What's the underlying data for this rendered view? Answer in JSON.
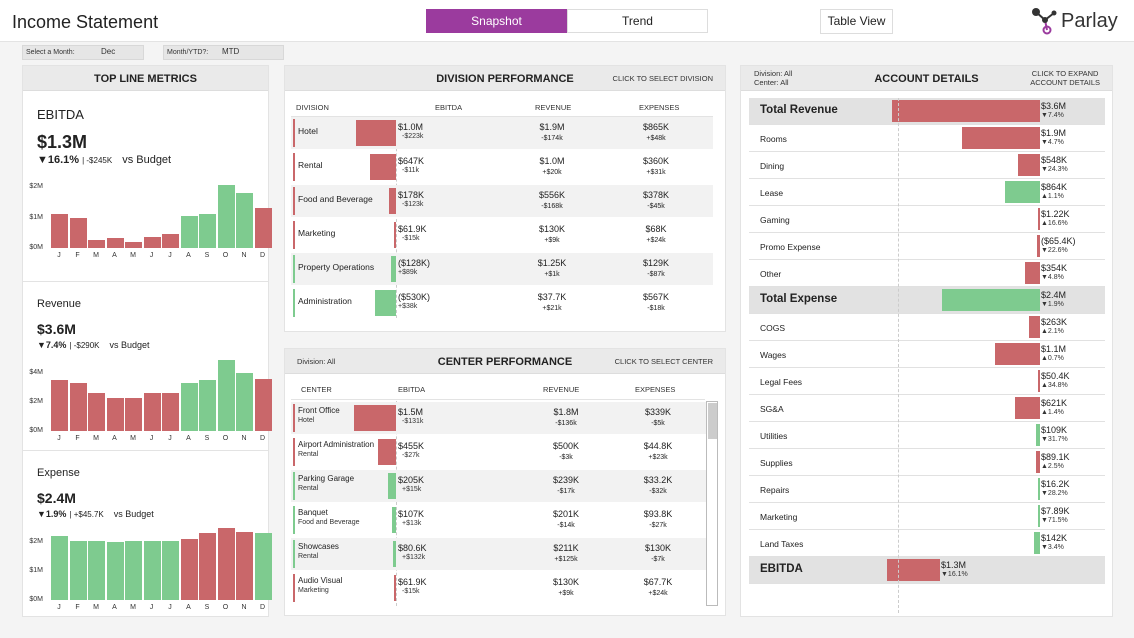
{
  "header": {
    "title": "Income Statement",
    "tabs": [
      {
        "label": "Snapshot",
        "active": true
      },
      {
        "label": "Trend",
        "active": false
      }
    ],
    "table_view": "Table View",
    "logo": "Parlay"
  },
  "filters": {
    "month_label": "Select a Month:",
    "month_value": "Dec",
    "mtd_label": "Month/YTD?:",
    "mtd_value": "MTD"
  },
  "top_line": {
    "title": "TOP LINE METRICS",
    "months": [
      "J",
      "F",
      "M",
      "A",
      "M",
      "J",
      "J",
      "A",
      "S",
      "O",
      "N",
      "D"
    ],
    "kpis": [
      {
        "name": "EBITDA",
        "value": "$1.3M",
        "pct": "▼16.1%",
        "delta": "| -$245K",
        "vs": "vs Budget",
        "yticks": [
          "$2M",
          "$1M",
          "$0M"
        ],
        "bars": [
          1.1,
          0.98,
          0.27,
          0.32,
          0.19,
          0.37,
          0.45,
          1.05,
          1.1,
          2.05,
          1.8,
          1.3
        ],
        "colors": [
          "red",
          "red",
          "red",
          "red",
          "red",
          "red",
          "red",
          "green",
          "green",
          "green",
          "green",
          "red"
        ]
      },
      {
        "name": "Revenue",
        "value": "$3.6M",
        "pct": "▼7.4%",
        "delta": "| -$290K",
        "vs": "vs Budget",
        "yticks": [
          "$4M",
          "$2M",
          "$0M"
        ],
        "bars": [
          3.5,
          3.3,
          2.6,
          2.3,
          2.3,
          2.6,
          2.6,
          3.3,
          3.5,
          4.9,
          4.0,
          3.6
        ],
        "colors": [
          "red",
          "red",
          "red",
          "red",
          "red",
          "red",
          "red",
          "green",
          "green",
          "green",
          "green",
          "red"
        ]
      },
      {
        "name": "Expense",
        "value": "$2.4M",
        "pct": "▼1.9%",
        "delta": "| +$45.7K",
        "vs": "vs Budget",
        "yticks": [
          "$2M",
          "$1M",
          "$0M"
        ],
        "bars": [
          2.2,
          2.05,
          2.05,
          2.0,
          2.05,
          2.05,
          2.05,
          2.1,
          2.3,
          2.5,
          2.35,
          2.3
        ],
        "colors": [
          "green",
          "green",
          "green",
          "green",
          "green",
          "green",
          "green",
          "red",
          "red",
          "red",
          "red",
          "green"
        ]
      }
    ]
  },
  "division": {
    "title": "DIVISION PERFORMANCE",
    "action": "CLICK TO SELECT DIVISION",
    "cols": [
      "DIVISION",
      "EBITDA",
      "REVENUE",
      "EXPENSES"
    ],
    "rows": [
      {
        "name": "Hotel",
        "ebitda": "$1.0M",
        "ebitda_d": "-$223k",
        "ebitda_val": 1.0,
        "color": "red",
        "rev": "$1.9M",
        "rev_d": "-$174k",
        "exp": "$865K",
        "exp_d": "+$48k"
      },
      {
        "name": "Rental",
        "ebitda": "$647K",
        "ebitda_d": "-$11k",
        "ebitda_val": 0.647,
        "color": "red",
        "rev": "$1.0M",
        "rev_d": "+$20k",
        "exp": "$360K",
        "exp_d": "+$31k"
      },
      {
        "name": "Food and Beverage",
        "ebitda": "$178K",
        "ebitda_d": "-$123k",
        "ebitda_val": 0.178,
        "color": "red",
        "rev": "$556K",
        "rev_d": "-$168k",
        "exp": "$378K",
        "exp_d": "-$45k"
      },
      {
        "name": "Marketing",
        "ebitda": "$61.9K",
        "ebitda_d": "-$15k",
        "ebitda_val": 0.0619,
        "color": "red",
        "rev": "$130K",
        "rev_d": "+$9k",
        "exp": "$68K",
        "exp_d": "+$24k"
      },
      {
        "name": "Property Operations",
        "ebitda": "($128K)",
        "ebitda_d": "+$89k",
        "ebitda_val": -0.128,
        "color": "green",
        "rev": "$1.25K",
        "rev_d": "+$1k",
        "exp": "$129K",
        "exp_d": "-$87k"
      },
      {
        "name": "Administration",
        "ebitda": "($530K)",
        "ebitda_d": "+$38k",
        "ebitda_val": -0.53,
        "color": "green",
        "rev": "$37.7K",
        "rev_d": "+$21k",
        "exp": "$567K",
        "exp_d": "-$18k"
      }
    ]
  },
  "center": {
    "title": "CENTER PERFORMANCE",
    "filter": "Division: All",
    "action": "CLICK TO SELECT CENTER",
    "cols": [
      "CENTER",
      "EBITDA",
      "REVENUE",
      "EXPENSES"
    ],
    "rows": [
      {
        "name": "Front Office",
        "div": "Hotel",
        "ebitda": "$1.5M",
        "ebitda_d": "-$131k",
        "ebitda_val": 1.5,
        "color": "red",
        "rev": "$1.8M",
        "rev_d": "-$136k",
        "exp": "$339K",
        "exp_d": "-$5k"
      },
      {
        "name": "Airport Administration",
        "div": "Rental",
        "ebitda": "$455K",
        "ebitda_d": "-$27k",
        "ebitda_val": 0.455,
        "color": "red",
        "rev": "$500K",
        "rev_d": "-$3k",
        "exp": "$44.8K",
        "exp_d": "+$23k"
      },
      {
        "name": "Parking Garage",
        "div": "Rental",
        "ebitda": "$205K",
        "ebitda_d": "+$15k",
        "ebitda_val": 0.205,
        "color": "green",
        "rev": "$239K",
        "rev_d": "-$17k",
        "exp": "$33.2K",
        "exp_d": "-$32k"
      },
      {
        "name": "Banquet",
        "div": "Food and Beverage",
        "ebitda": "$107K",
        "ebitda_d": "+$13k",
        "ebitda_val": 0.107,
        "color": "green",
        "rev": "$201K",
        "rev_d": "-$14k",
        "exp": "$93.8K",
        "exp_d": "-$27k"
      },
      {
        "name": "Showcases",
        "div": "Rental",
        "ebitda": "$80.6K",
        "ebitda_d": "+$132k",
        "ebitda_val": 0.0806,
        "color": "green",
        "rev": "$211K",
        "rev_d": "+$125k",
        "exp": "$130K",
        "exp_d": "-$7k"
      },
      {
        "name": "Audio Visual",
        "div": "Marketing",
        "ebitda": "$61.9K",
        "ebitda_d": "-$15k",
        "ebitda_val": 0.0619,
        "color": "red",
        "rev": "$130K",
        "rev_d": "+$9k",
        "exp": "$67.7K",
        "exp_d": "+$24k"
      }
    ]
  },
  "account": {
    "title": "ACCOUNT DETAILS",
    "filter_div": "Division: All",
    "filter_center": "Center: All",
    "action_1": "CLICK TO EXPAND",
    "action_2": "ACCOUNT DETAILS",
    "rows": [
      {
        "name": "Total Revenue",
        "header": true,
        "value": "$3.6M",
        "delta": "▼7.4%",
        "mag": 3.6,
        "color": "red",
        "dir": "neg"
      },
      {
        "name": "Rooms",
        "value": "$1.9M",
        "delta": "▼4.7%",
        "mag": 1.9,
        "color": "red",
        "dir": "neg"
      },
      {
        "name": "Dining",
        "value": "$548K",
        "delta": "▼24.3%",
        "mag": 0.548,
        "color": "red",
        "dir": "neg"
      },
      {
        "name": "Lease",
        "value": "$864K",
        "delta": "▲1.1%",
        "mag": 0.864,
        "color": "green",
        "dir": "neg"
      },
      {
        "name": "Gaming",
        "value": "$1.22K",
        "delta": "▲16.6%",
        "mag": 0.01,
        "color": "red",
        "dir": "neg"
      },
      {
        "name": "Promo Expense",
        "value": "($65.4K)",
        "delta": "▼22.6%",
        "mag": 0.065,
        "color": "red",
        "dir": "neg"
      },
      {
        "name": "Other",
        "value": "$354K",
        "delta": "▼4.8%",
        "mag": 0.354,
        "color": "red",
        "dir": "neg"
      },
      {
        "name": "Total Expense",
        "header": true,
        "value": "$2.4M",
        "delta": "▼1.9%",
        "mag": 2.4,
        "color": "green",
        "dir": "neg"
      },
      {
        "name": "COGS",
        "value": "$263K",
        "delta": "▲2.1%",
        "mag": 0.263,
        "color": "red",
        "dir": "neg"
      },
      {
        "name": "Wages",
        "value": "$1.1M",
        "delta": "▲0.7%",
        "mag": 1.1,
        "color": "red",
        "dir": "neg"
      },
      {
        "name": "Legal Fees",
        "value": "$50.4K",
        "delta": "▲34.8%",
        "mag": 0.0504,
        "color": "red",
        "dir": "neg"
      },
      {
        "name": "SG&A",
        "value": "$621K",
        "delta": "▲1.4%",
        "mag": 0.621,
        "color": "red",
        "dir": "neg"
      },
      {
        "name": "Utilities",
        "value": "$109K",
        "delta": "▼31.7%",
        "mag": 0.109,
        "color": "green",
        "dir": "neg"
      },
      {
        "name": "Supplies",
        "value": "$89.1K",
        "delta": "▲2.5%",
        "mag": 0.089,
        "color": "red",
        "dir": "neg"
      },
      {
        "name": "Repairs",
        "value": "$16.2K",
        "delta": "▼28.2%",
        "mag": 0.0162,
        "color": "green",
        "dir": "neg"
      },
      {
        "name": "Marketing",
        "value": "$7.89K",
        "delta": "▼71.5%",
        "mag": 0.0079,
        "color": "green",
        "dir": "neg"
      },
      {
        "name": "Land Taxes",
        "value": "$142K",
        "delta": "▼3.4%",
        "mag": 0.142,
        "color": "green",
        "dir": "neg"
      },
      {
        "name": "EBITDA",
        "header": true,
        "value": "$1.3M",
        "delta": "▼16.1%",
        "mag": 1.3,
        "color": "red",
        "dir": "pos"
      }
    ]
  }
}
